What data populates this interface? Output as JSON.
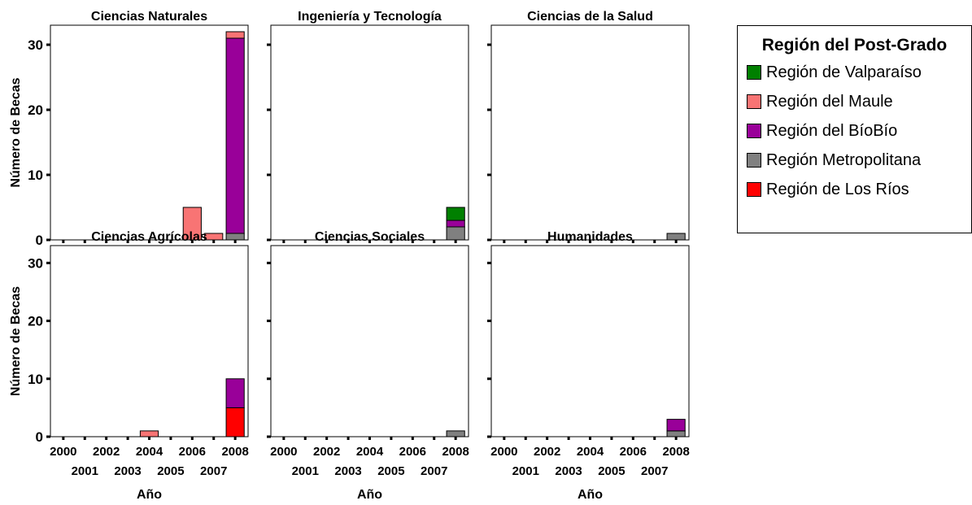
{
  "chart_data": {
    "type": "bar",
    "stacked": true,
    "years": [
      "2000",
      "2001",
      "2002",
      "2003",
      "2004",
      "2005",
      "2006",
      "2007",
      "2008"
    ],
    "ylim": [
      0,
      33
    ],
    "yticks": [
      0,
      10,
      20,
      30
    ],
    "ylabel": "Número de Becas",
    "xlabel": "Año",
    "legend": {
      "title": "Región del Post-Grado",
      "position": "right",
      "entries": [
        {
          "name": "Región de Valparaíso",
          "color": "#008000"
        },
        {
          "name": "Región del Maule",
          "color": "#f87474"
        },
        {
          "name": "Región del BíoBío",
          "color": "#990099"
        },
        {
          "name": "Región Metropolitana",
          "color": "#808080"
        },
        {
          "name": "Región de Los Ríos",
          "color": "#ff0000"
        }
      ]
    },
    "panels": [
      {
        "title": "Ciencias Naturales",
        "bars": [
          {
            "year": "2006",
            "segments": [
              {
                "series": "Región del Maule",
                "value": 5
              }
            ]
          },
          {
            "year": "2007",
            "segments": [
              {
                "series": "Región del Maule",
                "value": 1
              }
            ]
          },
          {
            "year": "2008",
            "segments": [
              {
                "series": "Región Metropolitana",
                "value": 1
              },
              {
                "series": "Región del BíoBío",
                "value": 30
              },
              {
                "series": "Región del Maule",
                "value": 1
              }
            ]
          }
        ]
      },
      {
        "title": "Ingeniería y Tecnología",
        "bars": [
          {
            "year": "2008",
            "segments": [
              {
                "series": "Región Metropolitana",
                "value": 2
              },
              {
                "series": "Región del BíoBío",
                "value": 1
              },
              {
                "series": "Región de Valparaíso",
                "value": 2
              }
            ]
          }
        ]
      },
      {
        "title": "Ciencias de la Salud",
        "bars": [
          {
            "year": "2008",
            "segments": [
              {
                "series": "Región Metropolitana",
                "value": 1
              }
            ]
          }
        ]
      },
      {
        "title": "Ciencias Agrícolas",
        "bars": [
          {
            "year": "2004",
            "segments": [
              {
                "series": "Región del Maule",
                "value": 1
              }
            ]
          },
          {
            "year": "2008",
            "segments": [
              {
                "series": "Región de Los Ríos",
                "value": 5
              },
              {
                "series": "Región del BíoBío",
                "value": 5
              }
            ]
          }
        ]
      },
      {
        "title": "Ciencias Sociales",
        "bars": [
          {
            "year": "2008",
            "segments": [
              {
                "series": "Región Metropolitana",
                "value": 1
              }
            ]
          }
        ]
      },
      {
        "title": "Humanidades",
        "bars": [
          {
            "year": "2008",
            "segments": [
              {
                "series": "Región Metropolitana",
                "value": 1
              },
              {
                "series": "Región del BíoBío",
                "value": 2
              }
            ]
          }
        ]
      }
    ]
  }
}
